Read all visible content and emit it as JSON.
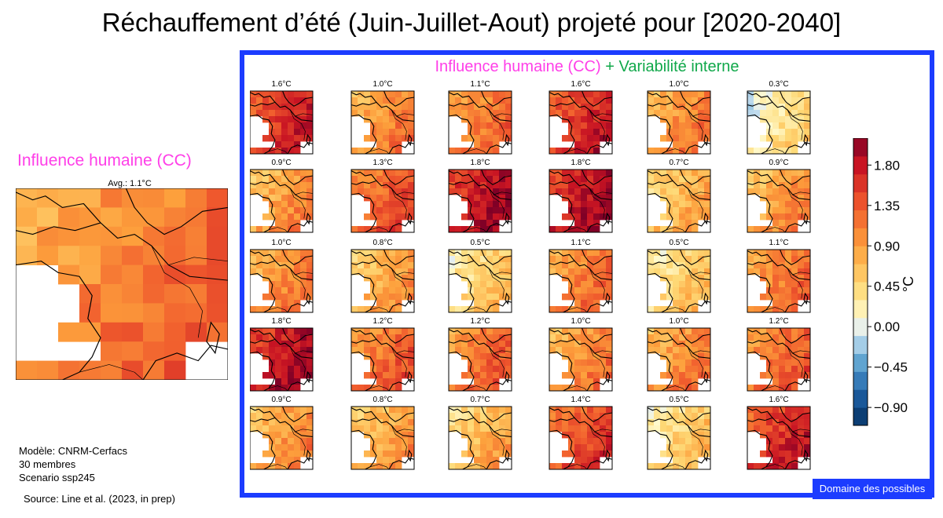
{
  "title": "Réchauffement d’été (Juin-Juillet-Aout) projeté pour [2020-2040]",
  "left_panel": {
    "heading": "Influence humaine (CC)",
    "avg_label": "Avg.: 1.1°C"
  },
  "info": {
    "model": "Modèle: CNRM-Cerfacs",
    "members": "30 membres",
    "scenario": "Scenario ssp245",
    "source": "Source: Line et al. (2023, in prep)"
  },
  "panel": {
    "heading_part1": "Influence humaine (CC)",
    "heading_part2": "+ Variabilité interne",
    "badge": "Domaine des possibles"
  },
  "colors": {
    "frame": "#1c3cff",
    "human": "#ff3fe8",
    "internal": "#10a84a"
  },
  "chart_data": {
    "type": "heatmap",
    "ensemble_mean": 1.1,
    "members": [
      1.6,
      1.0,
      1.1,
      1.6,
      1.0,
      0.3,
      0.9,
      1.3,
      1.8,
      1.8,
      0.7,
      0.9,
      1.0,
      0.8,
      0.5,
      1.1,
      0.5,
      1.1,
      1.8,
      1.2,
      1.2,
      1.0,
      1.0,
      1.2,
      0.9,
      0.8,
      0.7,
      1.4,
      0.5,
      1.6
    ],
    "member_labels": [
      "1.6°C",
      "1.0°C",
      "1.1°C",
      "1.6°C",
      "1.0°C",
      "0.3°C",
      "0.9°C",
      "1.3°C",
      "1.8°C",
      "1.8°C",
      "0.7°C",
      "0.9°C",
      "1.0°C",
      "0.8°C",
      "0.5°C",
      "1.1°C",
      "0.5°C",
      "1.1°C",
      "1.8°C",
      "1.2°C",
      "1.2°C",
      "1.0°C",
      "1.0°C",
      "1.2°C",
      "0.9°C",
      "0.8°C",
      "0.7°C",
      "1.4°C",
      "0.5°C",
      "1.6°C"
    ],
    "colorbar": {
      "label": "°C",
      "ticks": [
        "1.80",
        "1.35",
        "0.90",
        "0.45",
        "0.00",
        "−0.45",
        "−0.90"
      ],
      "tick_values": [
        1.8,
        1.35,
        0.9,
        0.45,
        0.0,
        -0.45,
        -0.9
      ],
      "range": [
        -1.1,
        2.1
      ]
    }
  }
}
